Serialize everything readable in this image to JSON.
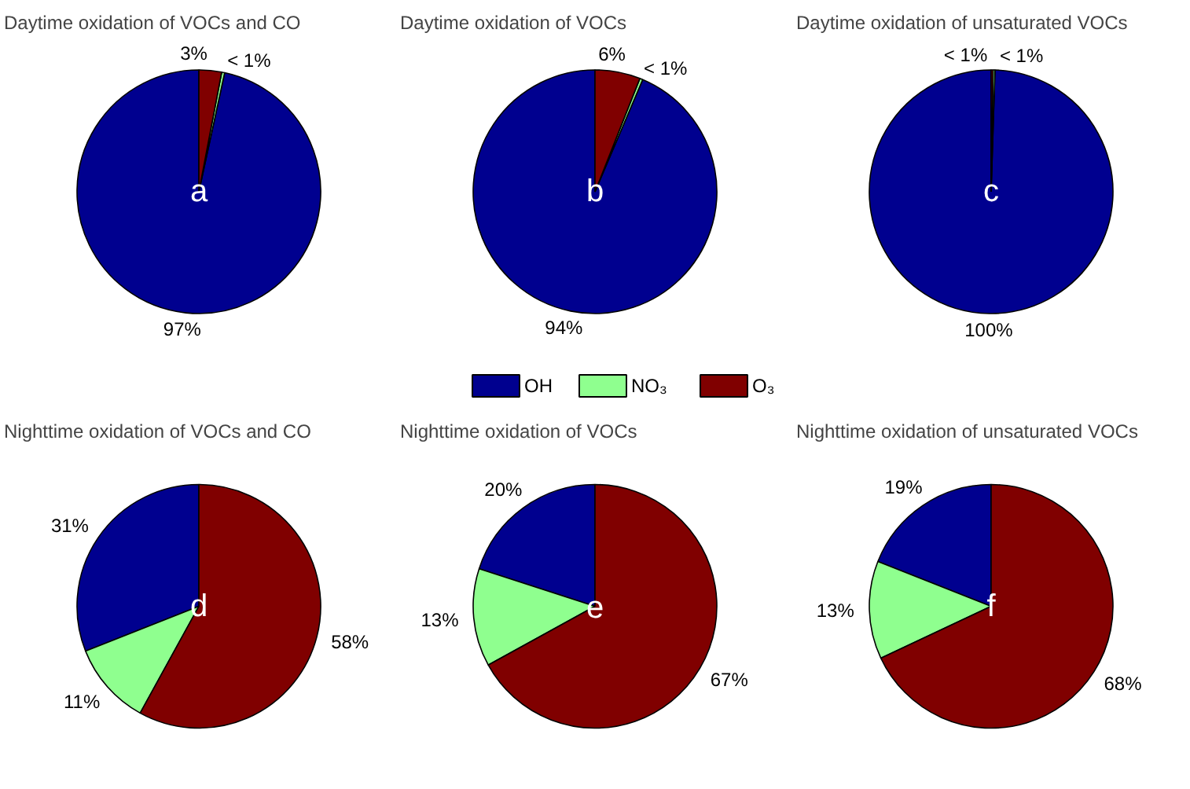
{
  "chart_data": [
    {
      "type": "pie",
      "title": "Daytime oxidation of VOCs and  CO",
      "categories": [
        "OH",
        "NO₃",
        "O₃"
      ],
      "values": [
        96.6,
        0.4,
        3
      ],
      "value_labels": [
        "97%",
        "< 1%",
        "3%"
      ],
      "colors": [
        "#00008f",
        "#8fff8f",
        "#800000"
      ],
      "annotations": [
        "a"
      ],
      "legend": "bottom"
    },
    {
      "type": "pie",
      "title": "Daytime oxidation of VOCs",
      "categories": [
        null,
        null,
        null
      ],
      "values": [
        93.6,
        0.4,
        6
      ],
      "value_labels": [
        "94%",
        "< 1%",
        "6%"
      ],
      "colors": [
        "#00008f",
        "#8fff8f",
        "#800000"
      ],
      "annotations": [
        "b"
      ]
    },
    {
      "type": "pie",
      "title": "Daytime oxidation of unsaturated VOCs",
      "categories": [
        null,
        null,
        null
      ],
      "values": [
        99.5,
        0.25,
        0.25
      ],
      "value_labels": [
        "100%",
        "< 1%",
        "< 1%"
      ],
      "colors": [
        "#00008f",
        "#8fff8f",
        "#800000"
      ],
      "annotations": [
        "c"
      ]
    },
    {
      "type": "pie",
      "title": "Nighttime oxidation of VOCs and  CO",
      "categories": [
        null,
        null,
        null
      ],
      "values": [
        31,
        11,
        58
      ],
      "value_labels": [
        "31%",
        "11%",
        "58%"
      ],
      "colors": [
        "#00008f",
        "#8fff8f",
        "#800000"
      ],
      "annotations": [
        "d"
      ]
    },
    {
      "type": "pie",
      "title": "Nighttime oxidation of VOCs",
      "categories": [
        null,
        null,
        null
      ],
      "values": [
        20,
        13,
        67
      ],
      "value_labels": [
        "20%",
        "13%",
        "67%"
      ],
      "colors": [
        "#00008f",
        "#8fff8f",
        "#800000"
      ],
      "annotations": [
        "e"
      ]
    },
    {
      "type": "pie",
      "title": "Nighttime oxidation of unsaturated VOCs",
      "categories": [
        null,
        null,
        null
      ],
      "values": [
        19,
        13,
        68
      ],
      "value_labels": [
        "19%",
        "13%",
        "68%"
      ],
      "colors": [
        "#00008f",
        "#8fff8f",
        "#800000"
      ],
      "annotations": [
        "f"
      ]
    }
  ]
}
